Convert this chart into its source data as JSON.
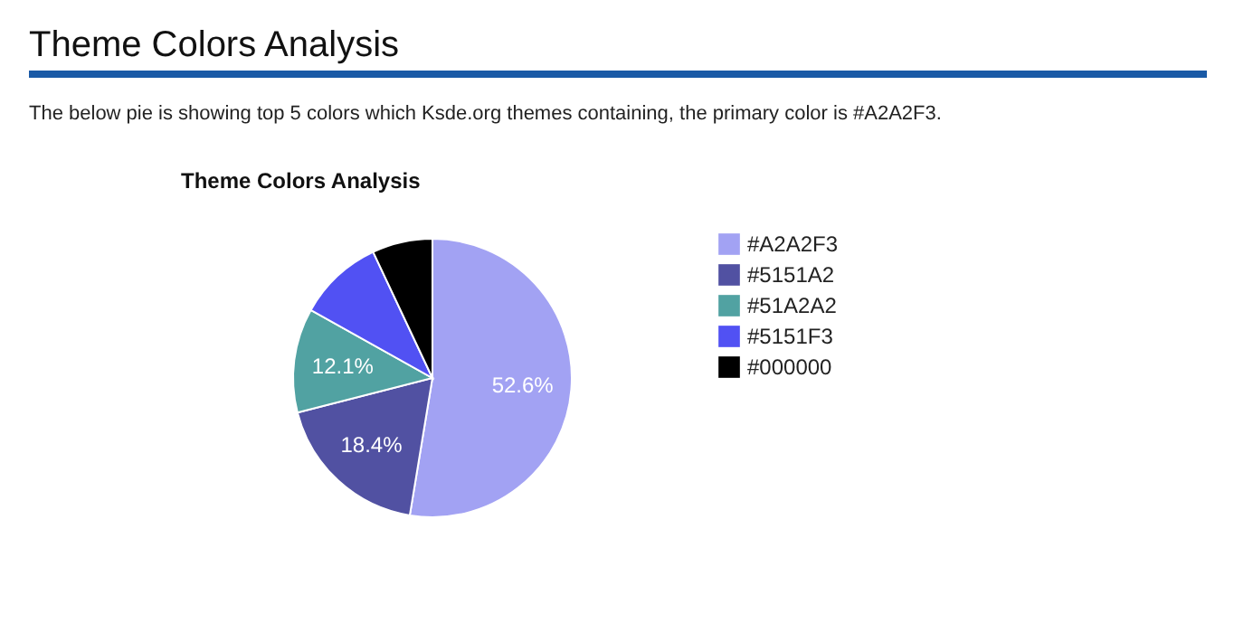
{
  "chart_data": {
    "type": "pie",
    "title": "Theme Colors Analysis",
    "subtitle": "The below pie is showing top 5 colors which Ksde.org themes containing, the primary color is #A2A2F3.",
    "annotations": [
      "Theme Colors Analysis"
    ],
    "categories": [
      "#A2A2F3",
      "#5151A2",
      "#51A2A2",
      "#5151F3",
      "#000000"
    ],
    "values": [
      52.6,
      18.4,
      12.1,
      9.9,
      7.0
    ],
    "colors": [
      "#a2a2f3",
      "#5151a2",
      "#51a2a2",
      "#5151f3",
      "#000000"
    ],
    "value_labels": [
      "52.6%",
      "18.4%",
      "12.1%",
      null,
      null
    ],
    "legend": "right"
  }
}
